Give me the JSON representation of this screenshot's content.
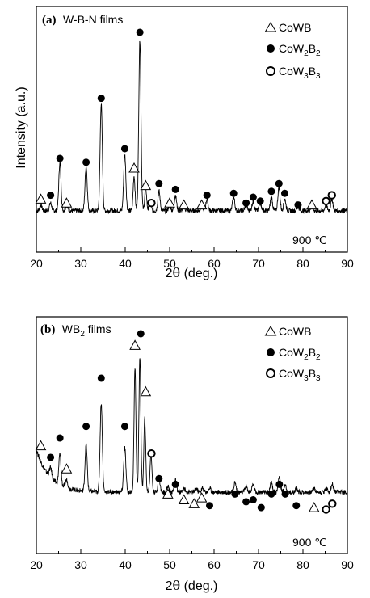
{
  "chart_data": [
    {
      "type": "line",
      "panel_tag": "(a)",
      "title": "W-B-N films",
      "xlabel_prefix": "2",
      "xlabel_symbol": "θ",
      "xlabel_suffix": " (deg.)",
      "ylabel": "Intensity (a.u.)",
      "xlim": [
        20,
        90
      ],
      "xticks": [
        20,
        30,
        40,
        50,
        60,
        70,
        80,
        90
      ],
      "annotation": "900 ℃",
      "legend": [
        {
          "symbol": "triangle",
          "label": "CoWB"
        },
        {
          "symbol": "filled-circle",
          "label": "CoW",
          "sub1": "2",
          "mid": "B",
          "sub2": "2"
        },
        {
          "symbol": "open-circle",
          "label": "CoW",
          "sub1": "3",
          "mid": "B",
          "sub2": "3"
        }
      ],
      "baseline": 8,
      "peaks": [
        {
          "x": 21.0,
          "h": 3,
          "w": 0.35
        },
        {
          "x": 23.2,
          "h": 4,
          "w": 0.35
        },
        {
          "x": 25.3,
          "h": 25,
          "w": 0.35
        },
        {
          "x": 26.8,
          "h": 3,
          "w": 0.35
        },
        {
          "x": 31.2,
          "h": 23,
          "w": 0.35
        },
        {
          "x": 34.6,
          "h": 55,
          "w": 0.35
        },
        {
          "x": 39.9,
          "h": 29,
          "w": 0.35
        },
        {
          "x": 42.0,
          "h": 18,
          "w": 0.3
        },
        {
          "x": 43.3,
          "h": 88,
          "w": 0.35
        },
        {
          "x": 44.6,
          "h": 12,
          "w": 0.3
        },
        {
          "x": 45.6,
          "h": 5,
          "w": 0.3
        },
        {
          "x": 47.6,
          "h": 10,
          "w": 0.35
        },
        {
          "x": 50.0,
          "h": 3,
          "w": 0.35
        },
        {
          "x": 51.3,
          "h": 8,
          "w": 0.35
        },
        {
          "x": 53.2,
          "h": 2,
          "w": 0.35
        },
        {
          "x": 57.2,
          "h": 3,
          "w": 0.35
        },
        {
          "x": 58.4,
          "h": 6,
          "w": 0.35
        },
        {
          "x": 64.4,
          "h": 7,
          "w": 0.35
        },
        {
          "x": 67.2,
          "h": 3,
          "w": 0.35
        },
        {
          "x": 68.8,
          "h": 5,
          "w": 0.35
        },
        {
          "x": 70.4,
          "h": 4,
          "w": 0.35
        },
        {
          "x": 72.9,
          "h": 7,
          "w": 0.35
        },
        {
          "x": 74.6,
          "h": 12,
          "w": 0.35
        },
        {
          "x": 75.9,
          "h": 6,
          "w": 0.35
        },
        {
          "x": 78.9,
          "h": 2,
          "w": 0.35
        },
        {
          "x": 82.0,
          "h": 2,
          "w": 0.35
        },
        {
          "x": 85.2,
          "h": 3,
          "w": 0.35
        },
        {
          "x": 86.5,
          "h": 6,
          "w": 0.35
        }
      ],
      "markers": [
        {
          "x": 21.0,
          "y": 14,
          "s": "triangle"
        },
        {
          "x": 23.2,
          "y": 16,
          "s": "filled-circle"
        },
        {
          "x": 25.3,
          "y": 35,
          "s": "filled-circle"
        },
        {
          "x": 26.8,
          "y": 12,
          "s": "triangle"
        },
        {
          "x": 31.2,
          "y": 33,
          "s": "filled-circle"
        },
        {
          "x": 34.6,
          "y": 66,
          "s": "filled-circle"
        },
        {
          "x": 39.9,
          "y": 40,
          "s": "filled-circle"
        },
        {
          "x": 42.0,
          "y": 30,
          "s": "triangle"
        },
        {
          "x": 43.3,
          "y": 100,
          "s": "filled-circle"
        },
        {
          "x": 44.6,
          "y": 21,
          "s": "triangle"
        },
        {
          "x": 45.9,
          "y": 12,
          "s": "open-circle"
        },
        {
          "x": 47.6,
          "y": 22,
          "s": "filled-circle"
        },
        {
          "x": 50.0,
          "y": 12,
          "s": "triangle"
        },
        {
          "x": 51.3,
          "y": 19,
          "s": "filled-circle"
        },
        {
          "x": 53.2,
          "y": 11,
          "s": "triangle"
        },
        {
          "x": 57.2,
          "y": 11,
          "s": "triangle"
        },
        {
          "x": 58.4,
          "y": 16,
          "s": "filled-circle"
        },
        {
          "x": 64.4,
          "y": 17,
          "s": "filled-circle"
        },
        {
          "x": 67.2,
          "y": 12,
          "s": "filled-circle"
        },
        {
          "x": 68.8,
          "y": 15,
          "s": "filled-circle"
        },
        {
          "x": 70.4,
          "y": 13,
          "s": "filled-circle"
        },
        {
          "x": 72.9,
          "y": 18,
          "s": "filled-circle"
        },
        {
          "x": 74.6,
          "y": 22,
          "s": "filled-circle"
        },
        {
          "x": 75.9,
          "y": 17,
          "s": "filled-circle"
        },
        {
          "x": 78.9,
          "y": 11,
          "s": "filled-circle"
        },
        {
          "x": 82.0,
          "y": 11,
          "s": "triangle"
        },
        {
          "x": 85.2,
          "y": 13,
          "s": "open-circle"
        },
        {
          "x": 86.5,
          "y": 16,
          "s": "open-circle"
        }
      ]
    },
    {
      "type": "line",
      "panel_tag": "(b)",
      "title": "WB",
      "title_sub": "2",
      "title_suffix": " films",
      "xlabel_prefix": "2",
      "xlabel_symbol": "θ",
      "xlabel_suffix": " (deg.)",
      "ylabel": "",
      "xlim": [
        20,
        90
      ],
      "xticks": [
        20,
        30,
        40,
        50,
        60,
        70,
        80,
        90
      ],
      "annotation": "900 ℃",
      "legend": [
        {
          "symbol": "triangle",
          "label": "CoWB"
        },
        {
          "symbol": "filled-circle",
          "label": "CoW",
          "sub1": "2",
          "mid": "B",
          "sub2": "2"
        },
        {
          "symbol": "open-circle",
          "label": "CoW",
          "sub1": "3",
          "mid": "B",
          "sub2": "3"
        }
      ],
      "baseline": 18,
      "decay": {
        "amp": 22,
        "tau": 3.0,
        "x0": 20
      },
      "peaks": [
        {
          "x": 23.2,
          "h": 5,
          "w": 0.4
        },
        {
          "x": 25.3,
          "h": 16,
          "w": 0.35
        },
        {
          "x": 26.8,
          "h": 4,
          "w": 0.4
        },
        {
          "x": 31.2,
          "h": 24,
          "w": 0.35
        },
        {
          "x": 34.6,
          "h": 46,
          "w": 0.35
        },
        {
          "x": 39.9,
          "h": 23,
          "w": 0.35
        },
        {
          "x": 42.2,
          "h": 64,
          "w": 0.3
        },
        {
          "x": 43.3,
          "h": 70,
          "w": 0.3
        },
        {
          "x": 44.4,
          "h": 38,
          "w": 0.3
        },
        {
          "x": 45.8,
          "h": 20,
          "w": 0.3
        },
        {
          "x": 47.6,
          "h": 7,
          "w": 0.35
        },
        {
          "x": 49.6,
          "h": 3,
          "w": 0.35
        },
        {
          "x": 51.3,
          "h": 6,
          "w": 0.35
        },
        {
          "x": 53.2,
          "h": 2,
          "w": 0.35
        },
        {
          "x": 56.0,
          "h": 2,
          "w": 0.35
        },
        {
          "x": 57.4,
          "h": 2,
          "w": 0.35
        },
        {
          "x": 59.0,
          "h": 2,
          "w": 0.35
        },
        {
          "x": 64.7,
          "h": 5,
          "w": 0.35
        },
        {
          "x": 67.2,
          "h": 3,
          "w": 0.35
        },
        {
          "x": 68.8,
          "h": 4,
          "w": 0.35
        },
        {
          "x": 72.9,
          "h": 5,
          "w": 0.35
        },
        {
          "x": 74.7,
          "h": 8,
          "w": 0.35
        },
        {
          "x": 76.0,
          "h": 4,
          "w": 0.35
        },
        {
          "x": 78.5,
          "h": 2,
          "w": 0.35
        },
        {
          "x": 82.5,
          "h": 2,
          "w": 0.35
        },
        {
          "x": 85.2,
          "h": 2,
          "w": 0.35
        },
        {
          "x": 86.6,
          "h": 4,
          "w": 0.35
        }
      ],
      "markers": [
        {
          "x": 21.0,
          "y": 42,
          "s": "triangle"
        },
        {
          "x": 23.2,
          "y": 36,
          "s": "filled-circle"
        },
        {
          "x": 25.3,
          "y": 46,
          "s": "filled-circle"
        },
        {
          "x": 26.8,
          "y": 30,
          "s": "triangle"
        },
        {
          "x": 31.2,
          "y": 52,
          "s": "filled-circle"
        },
        {
          "x": 34.6,
          "y": 77,
          "s": "filled-circle"
        },
        {
          "x": 39.9,
          "y": 52,
          "s": "filled-circle"
        },
        {
          "x": 42.2,
          "y": 94,
          "s": "triangle"
        },
        {
          "x": 43.5,
          "y": 100,
          "s": "filled-circle"
        },
        {
          "x": 44.6,
          "y": 70,
          "s": "triangle"
        },
        {
          "x": 45.9,
          "y": 38,
          "s": "open-circle"
        },
        {
          "x": 47.6,
          "y": 25,
          "s": "filled-circle"
        },
        {
          "x": 49.6,
          "y": 17,
          "s": "triangle"
        },
        {
          "x": 51.3,
          "y": 22,
          "s": "filled-circle"
        },
        {
          "x": 53.2,
          "y": 14,
          "s": "triangle"
        },
        {
          "x": 55.5,
          "y": 12,
          "s": "triangle"
        },
        {
          "x": 57.2,
          "y": 15,
          "s": "triangle"
        },
        {
          "x": 59.0,
          "y": 11,
          "s": "filled-circle"
        },
        {
          "x": 64.7,
          "y": 17,
          "s": "filled-circle"
        },
        {
          "x": 67.2,
          "y": 13,
          "s": "filled-circle"
        },
        {
          "x": 68.8,
          "y": 14,
          "s": "filled-circle"
        },
        {
          "x": 70.6,
          "y": 10,
          "s": "filled-circle"
        },
        {
          "x": 72.9,
          "y": 17,
          "s": "filled-circle"
        },
        {
          "x": 74.7,
          "y": 22,
          "s": "filled-circle"
        },
        {
          "x": 76.0,
          "y": 17,
          "s": "filled-circle"
        },
        {
          "x": 78.5,
          "y": 11,
          "s": "filled-circle"
        },
        {
          "x": 82.5,
          "y": 10,
          "s": "triangle"
        },
        {
          "x": 85.2,
          "y": 9,
          "s": "open-circle"
        },
        {
          "x": 86.6,
          "y": 12,
          "s": "open-circle"
        }
      ]
    }
  ]
}
